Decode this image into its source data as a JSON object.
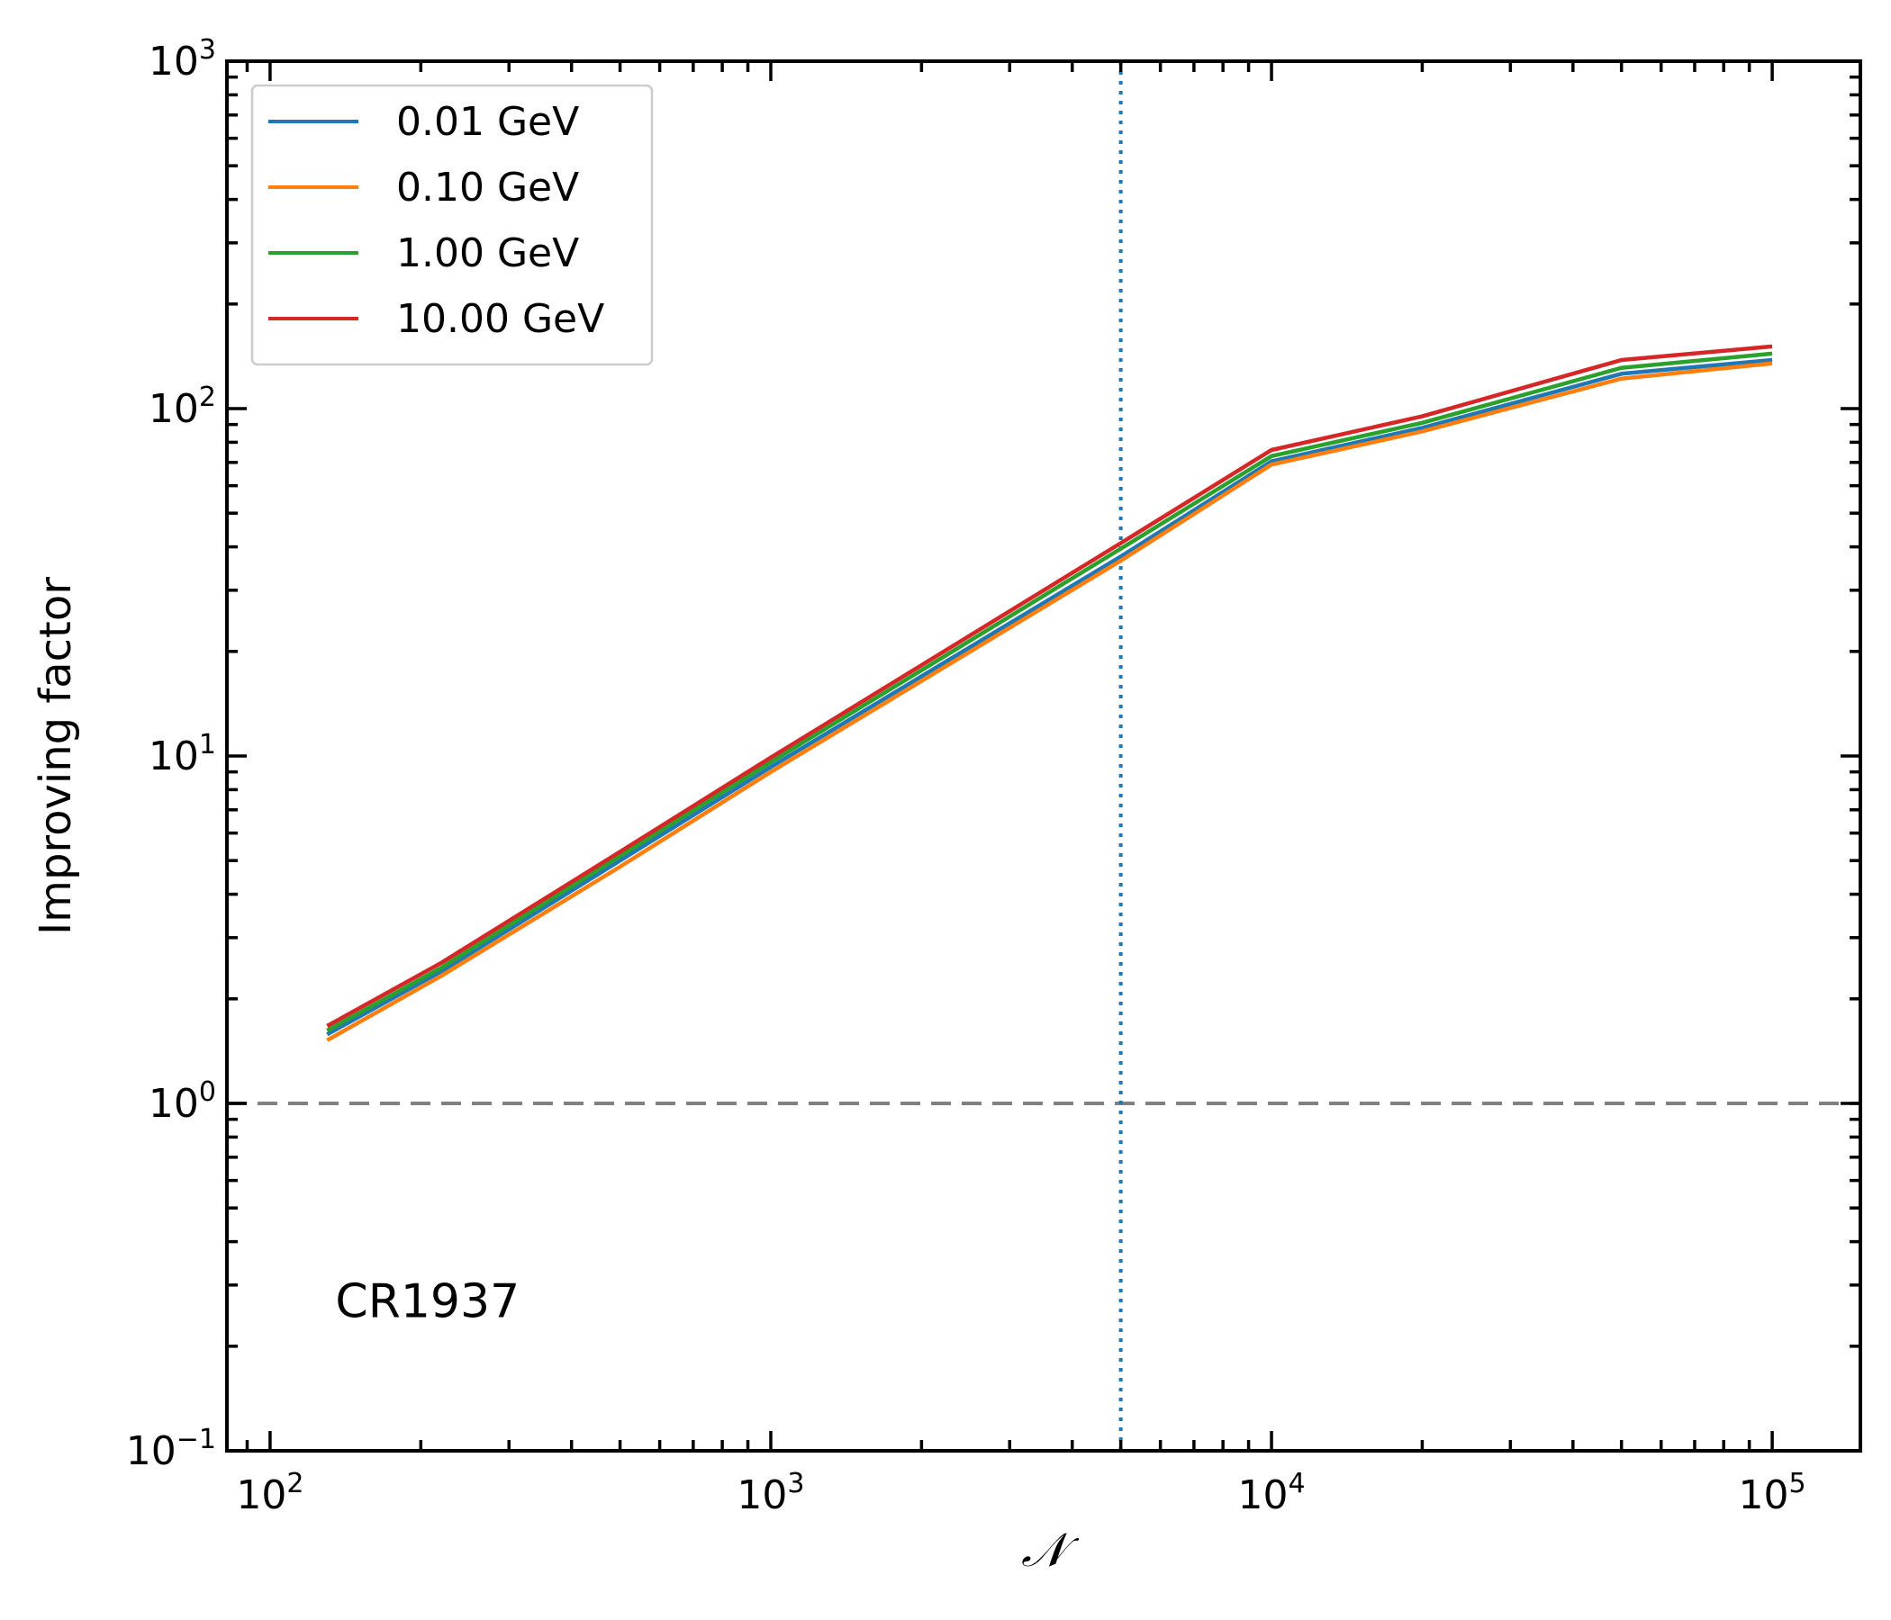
{
  "chart_data": {
    "type": "line",
    "xlabel": "𝒩",
    "ylabel": "Improving factor",
    "x_scale": "log",
    "y_scale": "log",
    "xlim": [
      82,
      150000
    ],
    "ylim": [
      0.1,
      1000
    ],
    "x_ticks": [
      {
        "value": 100,
        "base": "10",
        "exp": "2"
      },
      {
        "value": 1000,
        "base": "10",
        "exp": "3"
      },
      {
        "value": 10000,
        "base": "10",
        "exp": "4"
      },
      {
        "value": 100000,
        "base": "10",
        "exp": "5"
      }
    ],
    "y_ticks": [
      {
        "value": 0.1,
        "base": "10",
        "exp": "−1"
      },
      {
        "value": 1,
        "base": "10",
        "exp": "0"
      },
      {
        "value": 10,
        "base": "10",
        "exp": "1"
      },
      {
        "value": 100,
        "base": "10",
        "exp": "2"
      },
      {
        "value": 1000,
        "base": "10",
        "exp": "3"
      }
    ],
    "x": [
      130,
      220,
      500,
      1000,
      5000,
      10000,
      20000,
      50000,
      100000
    ],
    "series": [
      {
        "name": "0.01 GeV",
        "color": "#1f77b4",
        "values": [
          1.58,
          2.4,
          5.0,
          9.3,
          37.5,
          70.5,
          88,
          126,
          138
        ]
      },
      {
        "name": "0.10 GeV",
        "color": "#ff7f0e",
        "values": [
          1.52,
          2.33,
          4.8,
          9.0,
          36.5,
          69,
          86,
          122,
          135
        ]
      },
      {
        "name": "1.00 GeV",
        "color": "#2ca02c",
        "values": [
          1.62,
          2.46,
          5.15,
          9.6,
          39.5,
          73,
          91,
          131,
          144
        ]
      },
      {
        "name": "10.00 GeV",
        "color": "#d62728",
        "values": [
          1.67,
          2.54,
          5.3,
          9.9,
          41,
          76,
          95,
          138,
          151
        ]
      }
    ],
    "reference_lines": [
      {
        "orientation": "horizontal",
        "value": 1,
        "style": "dashed",
        "color": "#808080"
      },
      {
        "orientation": "vertical",
        "value": 5000,
        "style": "dotted",
        "color": "#1f77b4"
      }
    ],
    "annotations": [
      {
        "text": "CR1937",
        "x": 135,
        "y": 0.27
      }
    ],
    "legend_position": "top-left",
    "grid": false
  }
}
